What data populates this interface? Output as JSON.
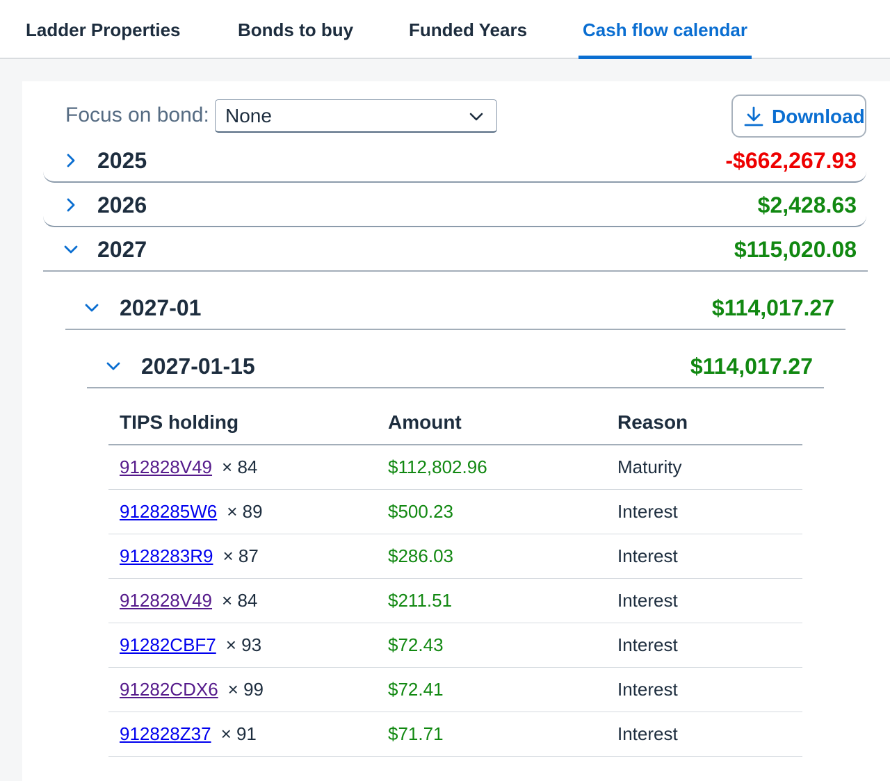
{
  "tabs": [
    {
      "label": "Ladder Properties",
      "active": false
    },
    {
      "label": "Bonds to buy",
      "active": false
    },
    {
      "label": "Funded Years",
      "active": false
    },
    {
      "label": "Cash flow calendar",
      "active": true
    }
  ],
  "toolbar": {
    "focus_label": "Focus on bond:",
    "focus_value": "None",
    "download_label": "Download"
  },
  "years": [
    {
      "year": "2025",
      "total": "-$662,267.93",
      "expanded": false
    },
    {
      "year": "2026",
      "total": "$2,428.63",
      "expanded": false
    },
    {
      "year": "2027",
      "total": "$115,020.08",
      "expanded": true
    }
  ],
  "month": {
    "label": "2027-01",
    "total": "$114,017.27",
    "expanded": true
  },
  "day": {
    "label": "2027-01-15",
    "total": "$114,017.27",
    "expanded": true
  },
  "holdings_table": {
    "headers": [
      "TIPS holding",
      "Amount",
      "Reason"
    ],
    "rows": [
      {
        "cusip": "912828V49",
        "qty": "× 84",
        "amount": "$112,802.96",
        "reason": "Maturity",
        "visited": true
      },
      {
        "cusip": "9128285W6",
        "qty": "× 89",
        "amount": "$500.23",
        "reason": "Interest",
        "visited": false
      },
      {
        "cusip": "9128283R9",
        "qty": "× 87",
        "amount": "$286.03",
        "reason": "Interest",
        "visited": false
      },
      {
        "cusip": "912828V49",
        "qty": "× 84",
        "amount": "$211.51",
        "reason": "Interest",
        "visited": true
      },
      {
        "cusip": "91282CBF7",
        "qty": "× 93",
        "amount": "$72.43",
        "reason": "Interest",
        "visited": false
      },
      {
        "cusip": "91282CDX6",
        "qty": "× 99",
        "amount": "$72.41",
        "reason": "Interest",
        "visited": true
      },
      {
        "cusip": "912828Z37",
        "qty": "× 91",
        "amount": "$71.71",
        "reason": "Interest",
        "visited": false
      }
    ]
  },
  "colors": {
    "accent": "#0a6ed1",
    "positive": "#118811",
    "negative": "#ee0000",
    "link": "#0000ee",
    "link_visited": "#551a8b"
  }
}
